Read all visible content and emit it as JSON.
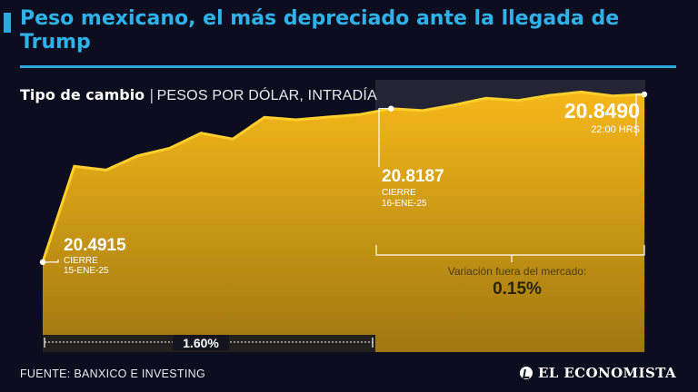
{
  "header": {
    "title": "Peso mexicano, el más depreciado ante la llegada de Trump",
    "subtitle_bold": "Tipo de cambio",
    "subtitle_separator": "|",
    "subtitle_unit": "PESOS POR DÓLAR, INTRADÍA"
  },
  "colors": {
    "background": "#0c0d1f",
    "accent": "#2aa9e0",
    "area_fill": "#f5b81a",
    "area_top": "#ffcf2a"
  },
  "chart_data": {
    "type": "area",
    "title": "Tipo de cambio",
    "ylabel": "",
    "xlabel": "",
    "ylim": [
      20.3,
      20.88
    ],
    "series": [
      {
        "values": [
          20.4915,
          20.6958,
          20.6878,
          20.7181,
          20.734,
          20.7666,
          20.754,
          20.8002,
          20.795,
          20.8007,
          20.806,
          20.8187,
          20.8145,
          20.8265,
          20.841,
          20.836,
          20.847,
          20.854,
          20.8455,
          20.849
        ]
      }
    ],
    "annotations": {
      "start": {
        "value": "20.4915",
        "label": "CIERRE",
        "date": "15-ENE-25"
      },
      "mid": {
        "value": "20.8187",
        "label": "CIERRE",
        "date": "16-ENE-25"
      },
      "end": {
        "value": "20.8490",
        "label": "22:00 HRS"
      },
      "offhours": {
        "label": "Variación fuera del mercado:",
        "value": "0.15%"
      },
      "session_change": "1.60%"
    }
  },
  "footer": {
    "source": "FUENTE: BANXICO E INVESTING",
    "logo": "EL ECONOMISTA"
  }
}
